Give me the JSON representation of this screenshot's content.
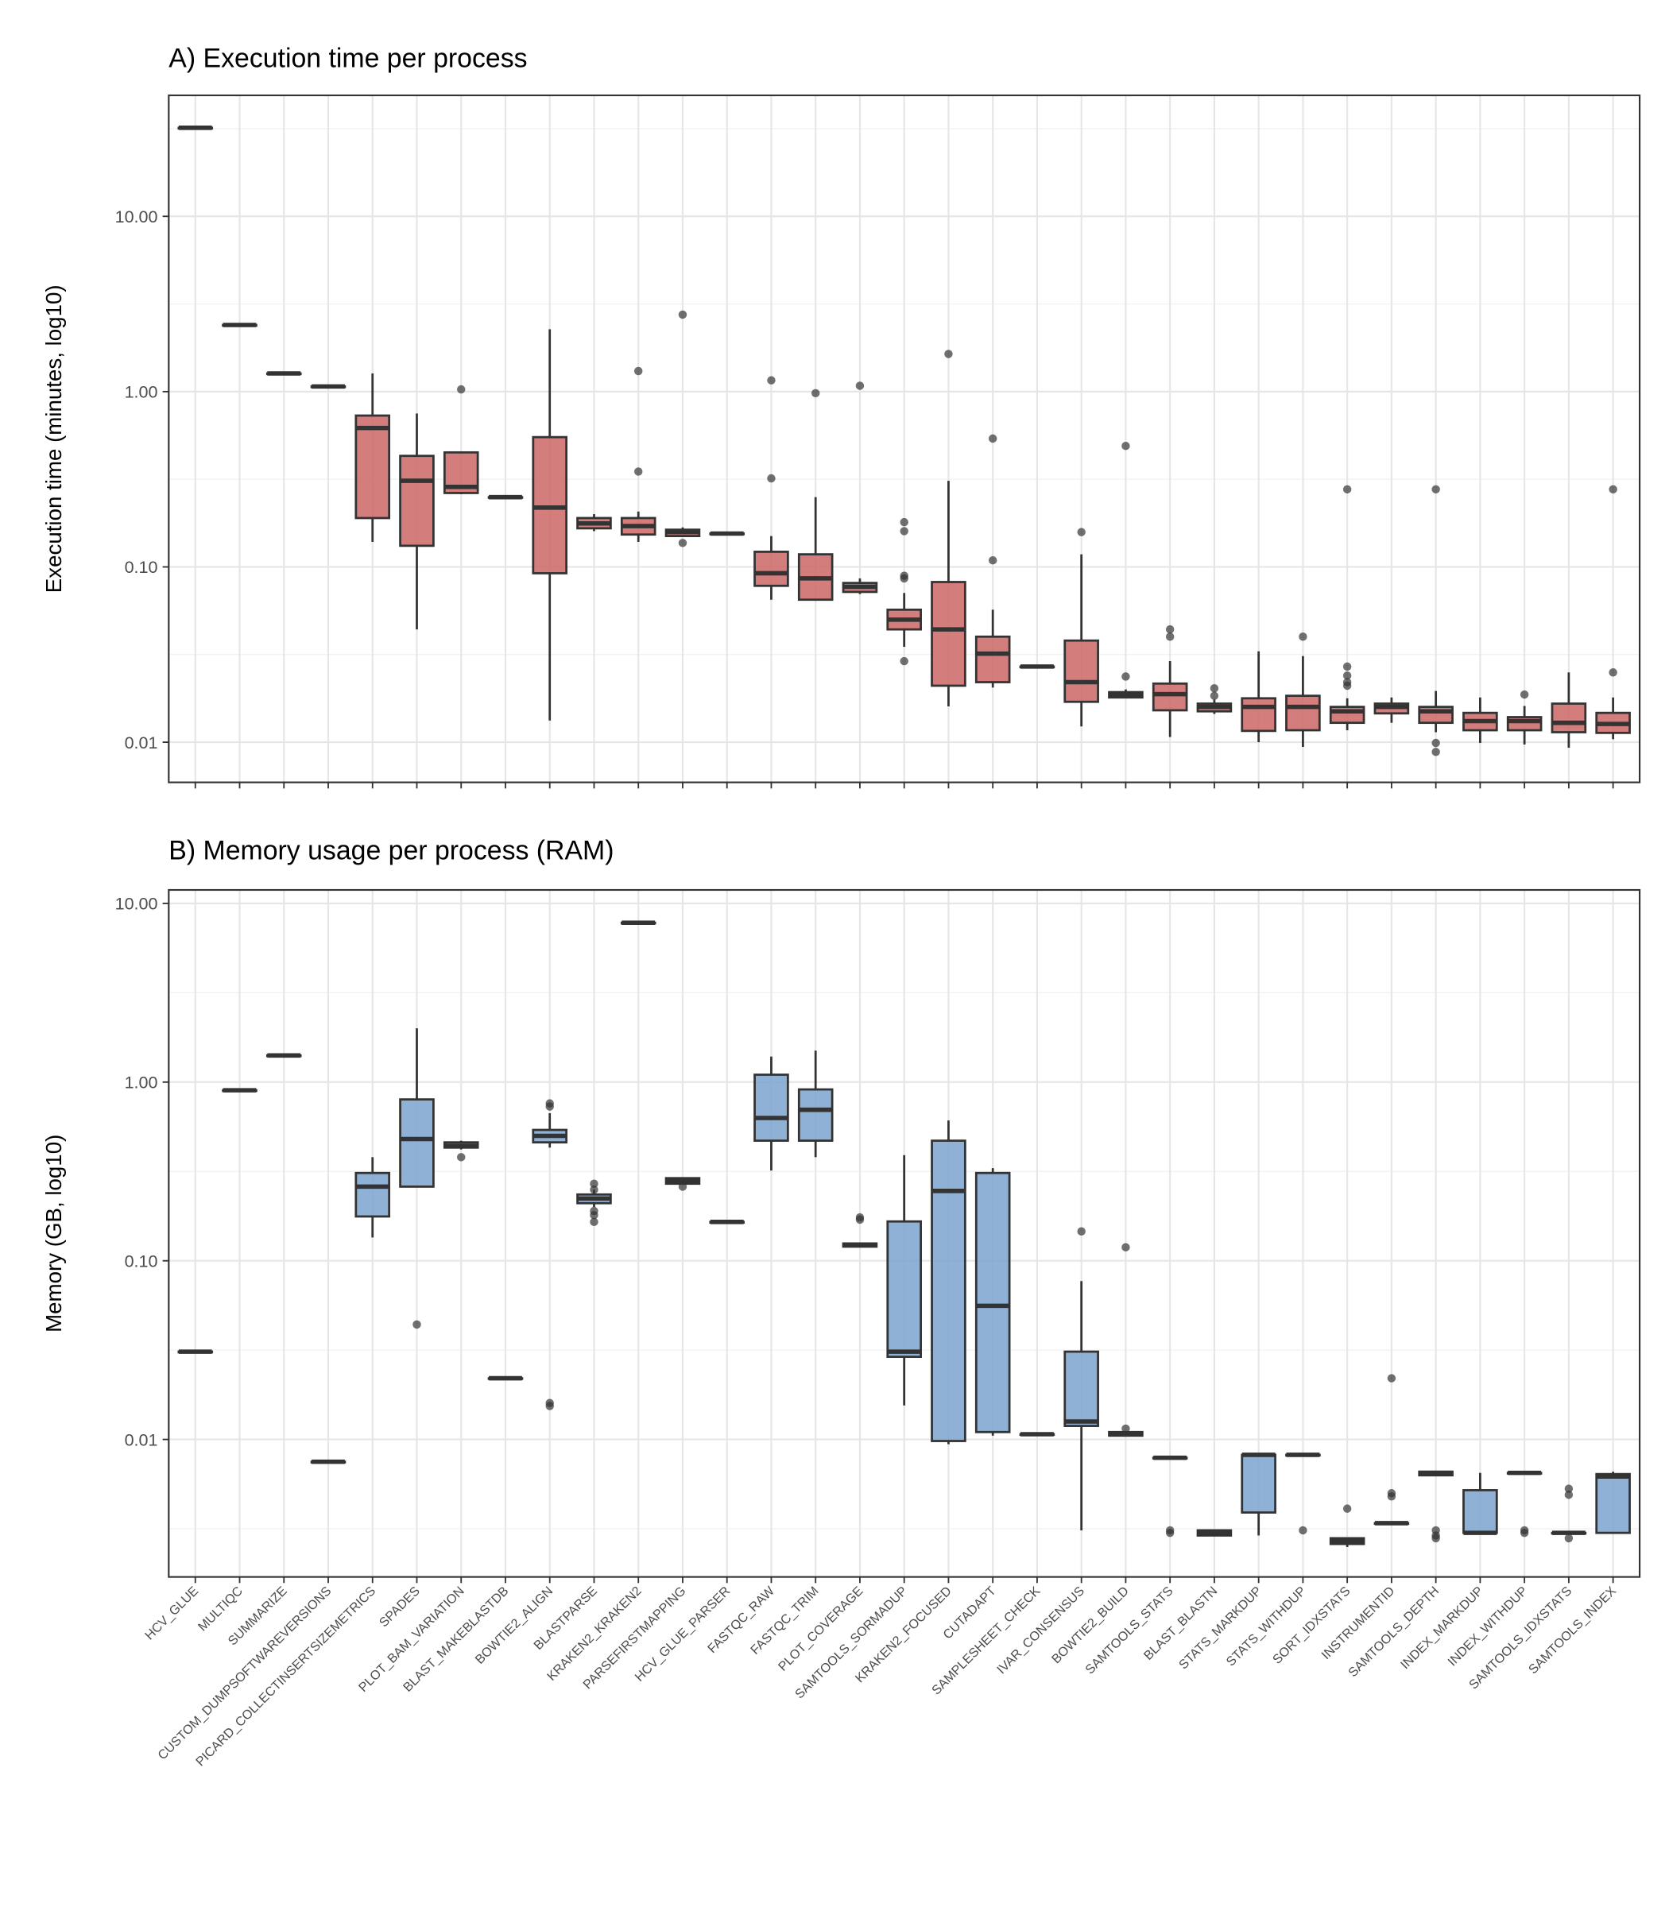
{
  "chart_data": {
    "type": "box",
    "categories": [
      "HCV_GLUE",
      "MULTIQC",
      "SUMMARIZE",
      "CUSTOM_DUMPSOFTWAREVERSIONS",
      "PICARD_COLLECTINSERTSIZEMETRICS",
      "SPADES",
      "PLOT_BAM_VARIATION",
      "BLAST_MAKEBLASTDB",
      "BOWTIE2_ALIGN",
      "BLASTPARSE",
      "KRAKEN2_KRAKEN2",
      "PARSEFIRSTMAPPING",
      "HCV_GLUE_PARSER",
      "FASTQC_RAW",
      "FASTQC_TRIM",
      "PLOT_COVERAGE",
      "SAMTOOLS_SORMADUP",
      "KRAKEN2_FOCUSED",
      "CUTADAPT",
      "SAMPLESHEET_CHECK",
      "IVAR_CONSENSUS",
      "BOWTIE2_BUILD",
      "SAMTOOLS_STATS",
      "BLAST_BLASTN",
      "STATS_MARKDUP",
      "STATS_WITHDUP",
      "SORT_IDXSTATS",
      "INSTRUMENTID",
      "SAMTOOLS_DEPTH",
      "INDEX_MARKDUP",
      "INDEX_WITHDUP",
      "SAMTOOLS_IDXSTATS",
      "SAMTOOLS_INDEX"
    ],
    "panels": [
      {
        "title": "A) Execution time per process",
        "ylabel": "Execution time (minutes, log10)",
        "yscale": "log10",
        "ylim": [
          0.0059,
          49
        ],
        "yticks": [
          10,
          1,
          0.1,
          0.01
        ],
        "ytick_labels": [
          "10.00",
          "1.00",
          "0.10",
          "0.01"
        ],
        "fill": "#cd6666",
        "grid": true,
        "box_stats_order": [
          "min",
          "q1",
          "median",
          "q3",
          "max"
        ],
        "boxes": [
          {
            "s": [
              32,
              32,
              32,
              32,
              32
            ],
            "out": []
          },
          {
            "s": [
              2.4,
              2.4,
              2.4,
              2.4,
              2.4
            ],
            "out": []
          },
          {
            "s": [
              1.27,
              1.27,
              1.27,
              1.27,
              1.27
            ],
            "out": []
          },
          {
            "s": [
              1.07,
              1.07,
              1.07,
              1.07,
              1.07
            ],
            "out": []
          },
          {
            "s": [
              0.139,
              0.19,
              0.62,
              0.73,
              1.27
            ],
            "out": []
          },
          {
            "s": [
              0.044,
              0.132,
              0.31,
              0.43,
              0.75
            ],
            "out": []
          },
          {
            "s": [
              0.26,
              0.264,
              0.286,
              0.45,
              0.45
            ],
            "out": [
              1.03
            ]
          },
          {
            "s": [
              0.25,
              0.25,
              0.25,
              0.25,
              0.25
            ],
            "out": []
          },
          {
            "s": [
              0.0133,
              0.092,
              0.218,
              0.55,
              2.27
            ],
            "out": []
          },
          {
            "s": [
              0.16,
              0.166,
              0.177,
              0.19,
              0.2
            ],
            "out": []
          },
          {
            "s": [
              0.139,
              0.153,
              0.171,
              0.19,
              0.207
            ],
            "out": [
              1.31,
              0.35
            ]
          },
          {
            "s": [
              0.15,
              0.15,
              0.158,
              0.163,
              0.168
            ],
            "out": [
              0.137,
              2.75
            ]
          },
          {
            "s": [
              0.155,
              0.155,
              0.155,
              0.155,
              0.155
            ],
            "out": []
          },
          {
            "s": [
              0.065,
              0.078,
              0.092,
              0.122,
              0.15
            ],
            "out": [
              1.16,
              0.32
            ]
          },
          {
            "s": [
              0.065,
              0.065,
              0.086,
              0.118,
              0.25
            ],
            "out": [
              0.98
            ]
          },
          {
            "s": [
              0.07,
              0.072,
              0.077,
              0.081,
              0.086
            ],
            "out": [
              1.08
            ]
          },
          {
            "s": [
              0.035,
              0.044,
              0.05,
              0.057,
              0.071
            ],
            "out": [
              0.18,
              0.16,
              0.089,
              0.086,
              0.029
            ]
          },
          {
            "s": [
              0.016,
              0.021,
              0.044,
              0.082,
              0.31
            ],
            "out": [
              1.64
            ]
          },
          {
            "s": [
              0.0205,
              0.022,
              0.032,
              0.04,
              0.057
            ],
            "out": [
              0.109,
              0.54
            ]
          },
          {
            "s": [
              0.027,
              0.027,
              0.027,
              0.027,
              0.027
            ],
            "out": []
          },
          {
            "s": [
              0.0123,
              0.017,
              0.022,
              0.038,
              0.118
            ],
            "out": [
              0.158
            ]
          },
          {
            "s": [
              0.0178,
              0.018,
              0.0187,
              0.0193,
              0.02
            ],
            "out": [
              0.0237,
              0.49
            ]
          },
          {
            "s": [
              0.0107,
              0.0152,
              0.0188,
              0.0216,
              0.029
            ],
            "out": [
              0.044,
              0.04
            ]
          },
          {
            "s": [
              0.0145,
              0.015,
              0.0159,
              0.0166,
              0.0175
            ],
            "out": [
              0.0203,
              0.0184
            ]
          },
          {
            "s": [
              0.01,
              0.0116,
              0.0159,
              0.0178,
              0.033
            ],
            "out": []
          },
          {
            "s": [
              0.0094,
              0.0117,
              0.0159,
              0.0184,
              0.031
            ],
            "out": [
              0.04
            ]
          },
          {
            "s": [
              0.0117,
              0.0129,
              0.015,
              0.0159,
              0.0178
            ],
            "out": [
              0.277,
              0.027,
              0.024,
              0.022,
              0.021
            ]
          },
          {
            "s": [
              0.0129,
              0.0146,
              0.0159,
              0.0166,
              0.018
            ],
            "out": []
          },
          {
            "s": [
              0.0114,
              0.0129,
              0.015,
              0.0159,
              0.0196
            ],
            "out": [
              0.277,
              0.0099,
              0.0088
            ]
          },
          {
            "s": [
              0.0099,
              0.0117,
              0.0132,
              0.0147,
              0.018
            ],
            "out": []
          },
          {
            "s": [
              0.0097,
              0.0117,
              0.0132,
              0.0139,
              0.0161
            ],
            "out": [
              0.0187
            ]
          },
          {
            "s": [
              0.0093,
              0.0114,
              0.0129,
              0.0166,
              0.025
            ],
            "out": []
          },
          {
            "s": [
              0.0104,
              0.0113,
              0.0127,
              0.0147,
              0.018
            ],
            "out": [
              0.277,
              0.025
            ]
          }
        ]
      },
      {
        "title": "B) Memory usage per process (RAM)",
        "ylabel": "Memory (GB, log10)",
        "yscale": "log10",
        "ylim": [
          0.0017,
          11.9
        ],
        "yticks": [
          10,
          1,
          0.1,
          0.01
        ],
        "ytick_labels": [
          "10.00",
          "1.00",
          "0.10",
          "0.01"
        ],
        "fill": "#7ba3cf",
        "grid": true,
        "box_stats_order": [
          "min",
          "q1",
          "median",
          "q3",
          "max"
        ],
        "boxes": [
          {
            "s": [
              0.031,
              0.031,
              0.031,
              0.031,
              0.031
            ],
            "out": []
          },
          {
            "s": [
              0.9,
              0.9,
              0.9,
              0.9,
              0.9
            ],
            "out": []
          },
          {
            "s": [
              1.41,
              1.41,
              1.41,
              1.41,
              1.41
            ],
            "out": []
          },
          {
            "s": [
              0.0075,
              0.0075,
              0.0075,
              0.0075,
              0.0075
            ],
            "out": []
          },
          {
            "s": [
              0.135,
              0.177,
              0.26,
              0.31,
              0.38
            ],
            "out": []
          },
          {
            "s": [
              0.26,
              0.26,
              0.48,
              0.8,
              2.0
            ],
            "out": [
              0.044
            ]
          },
          {
            "s": [
              0.42,
              0.43,
              0.44,
              0.46,
              0.47
            ],
            "out": [
              0.38
            ]
          },
          {
            "s": [
              0.022,
              0.022,
              0.022,
              0.022,
              0.022
            ],
            "out": []
          },
          {
            "s": [
              0.43,
              0.46,
              0.5,
              0.54,
              0.67
            ],
            "out": [
              0.76,
              0.73,
              0.016,
              0.0154
            ]
          },
          {
            "s": [
              0.2,
              0.21,
              0.223,
              0.235,
              0.25
            ],
            "out": [
              0.27,
              0.25,
              0.19,
              0.18,
              0.165
            ]
          },
          {
            "s": [
              7.8,
              7.8,
              7.8,
              7.8,
              7.8
            ],
            "out": []
          },
          {
            "s": [
              0.27,
              0.27,
              0.28,
              0.29,
              0.29
            ],
            "out": [
              0.26
            ]
          },
          {
            "s": [
              0.165,
              0.165,
              0.165,
              0.165,
              0.165
            ],
            "out": []
          },
          {
            "s": [
              0.32,
              0.47,
              0.63,
              1.1,
              1.39
            ],
            "out": []
          },
          {
            "s": [
              0.38,
              0.47,
              0.7,
              0.91,
              1.5
            ],
            "out": []
          },
          {
            "s": [
              0.12,
              0.12,
              0.123,
              0.125,
              0.125
            ],
            "out": [
              0.17,
              0.175
            ]
          },
          {
            "s": [
              0.0155,
              0.029,
              0.031,
              0.166,
              0.39
            ],
            "out": []
          },
          {
            "s": [
              0.0094,
              0.0098,
              0.246,
              0.47,
              0.61
            ],
            "out": []
          },
          {
            "s": [
              0.0105,
              0.011,
              0.056,
              0.31,
              0.33
            ],
            "out": []
          },
          {
            "s": [
              0.0107,
              0.0107,
              0.0107,
              0.0107,
              0.0107
            ],
            "out": []
          },
          {
            "s": [
              0.0031,
              0.0119,
              0.0126,
              0.031,
              0.077
            ],
            "out": [
              0.146
            ]
          },
          {
            "s": [
              0.0105,
              0.0105,
              0.0107,
              0.011,
              0.011
            ],
            "out": [
              0.119,
              0.0115
            ]
          },
          {
            "s": [
              0.0079,
              0.0079,
              0.0079,
              0.0079,
              0.0079
            ],
            "out": [
              0.0031,
              0.003
            ]
          },
          {
            "s": [
              0.0029,
              0.0029,
              0.003,
              0.0031,
              0.0031
            ],
            "out": []
          },
          {
            "s": [
              0.0029,
              0.0039,
              0.0082,
              0.0082,
              0.0082
            ],
            "out": []
          },
          {
            "s": [
              0.0082,
              0.0082,
              0.0082,
              0.0082,
              0.0082
            ],
            "out": [
              0.0031
            ]
          },
          {
            "s": [
              0.0025,
              0.0026,
              0.0027,
              0.0028,
              0.0028
            ],
            "out": [
              0.0041
            ]
          },
          {
            "s": [
              0.0034,
              0.0034,
              0.0034,
              0.0034,
              0.0034
            ],
            "out": [
              0.005,
              0.0048,
              0.022
            ]
          },
          {
            "s": [
              0.0063,
              0.0063,
              0.0065,
              0.0066,
              0.0066
            ],
            "out": [
              0.0031,
              0.0029,
              0.0028
            ]
          },
          {
            "s": [
              0.003,
              0.003,
              0.003,
              0.0052,
              0.0065
            ],
            "out": []
          },
          {
            "s": [
              0.0065,
              0.0065,
              0.0065,
              0.0065,
              0.0065
            ],
            "out": [
              0.0031,
              0.003
            ]
          },
          {
            "s": [
              0.003,
              0.003,
              0.003,
              0.003,
              0.003
            ],
            "out": [
              0.0053,
              0.0049,
              0.0028
            ]
          },
          {
            "s": [
              0.003,
              0.003,
              0.0062,
              0.0064,
              0.0066
            ],
            "out": []
          }
        ]
      }
    ]
  }
}
